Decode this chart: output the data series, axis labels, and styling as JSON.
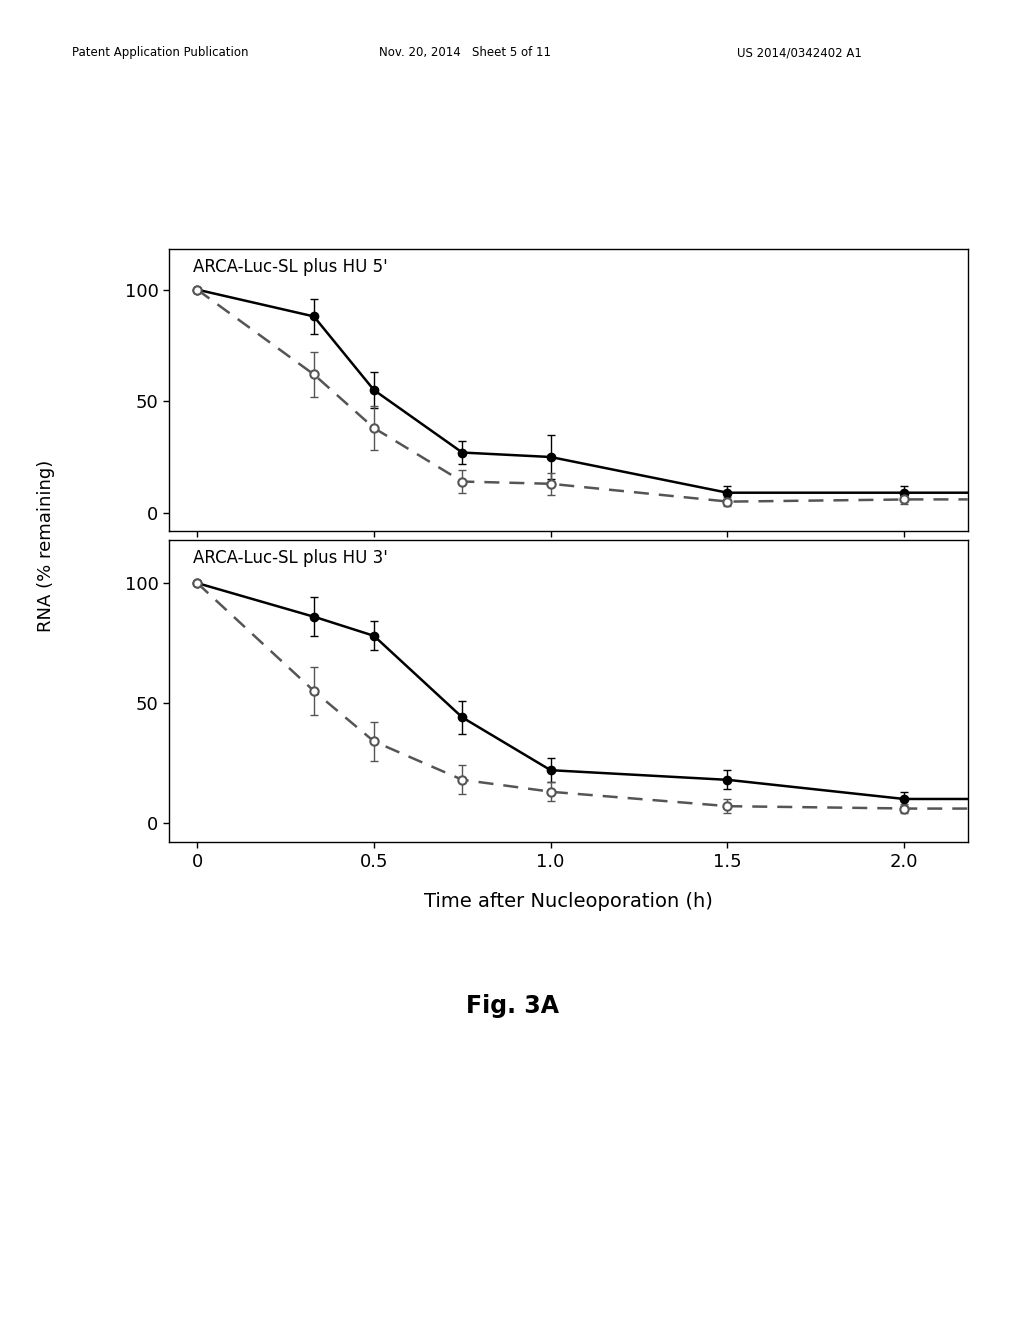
{
  "top_title": "ARCA-Luc-SL plus HU 5'",
  "bottom_title": "ARCA-Luc-SL plus HU 3'",
  "xlabel": "Time after Nucleoporation (h)",
  "ylabel": "RNA (% remaining)",
  "fig_label": "Fig. 3A",
  "top_solid_x": [
    0,
    0.33,
    0.5,
    0.75,
    1.0,
    1.5,
    2.0
  ],
  "top_solid_y": [
    100,
    88,
    55,
    27,
    25,
    9,
    9
  ],
  "top_solid_yerr": [
    0,
    8,
    8,
    5,
    10,
    3,
    3
  ],
  "top_dashed_x": [
    0,
    0.33,
    0.5,
    0.75,
    1.0,
    1.5,
    2.0
  ],
  "top_dashed_y": [
    100,
    62,
    38,
    14,
    13,
    5,
    6
  ],
  "top_dashed_yerr": [
    0,
    10,
    10,
    5,
    5,
    2,
    2
  ],
  "bottom_solid_x": [
    0,
    0.33,
    0.5,
    0.75,
    1.0,
    1.5,
    2.0
  ],
  "bottom_solid_y": [
    100,
    86,
    78,
    44,
    22,
    18,
    10
  ],
  "bottom_solid_yerr": [
    0,
    8,
    6,
    7,
    5,
    4,
    3
  ],
  "bottom_dashed_x": [
    0,
    0.33,
    0.5,
    0.75,
    1.0,
    1.5,
    2.0
  ],
  "bottom_dashed_y": [
    100,
    55,
    34,
    18,
    13,
    7,
    6
  ],
  "bottom_dashed_yerr": [
    0,
    10,
    8,
    6,
    4,
    3,
    2
  ],
  "background_color": "#ffffff",
  "line_color_solid": "#000000",
  "line_color_dashed": "#555555",
  "marker_size": 6,
  "line_width": 1.8,
  "xticks": [
    0,
    0.5,
    1.0,
    1.5,
    2.0
  ],
  "xtick_labels": [
    "0",
    "0.5",
    "1.0",
    "1.5",
    "2.0"
  ],
  "yticks": [
    0,
    50,
    100
  ],
  "xlim": [
    -0.08,
    2.18
  ],
  "ylim": [
    -8,
    118
  ],
  "header_left": "Patent Application Publication",
  "header_mid": "Nov. 20, 2014   Sheet 5 of 11",
  "header_right": "US 2014/0342402 A1"
}
